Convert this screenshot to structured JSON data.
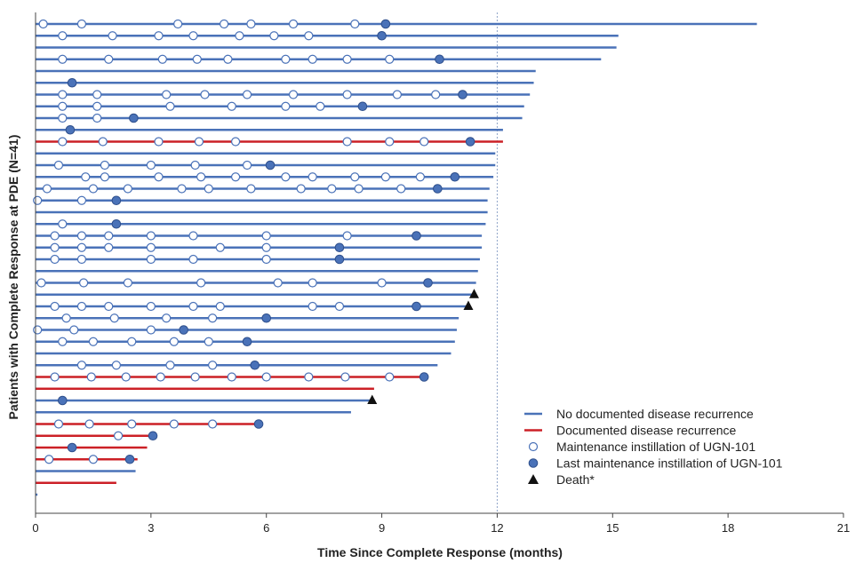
{
  "chart_data": {
    "type": "swimmer",
    "xlabel": "Time Since Complete Response (months)",
    "ylabel": "Patients with Complete Response at PDE (N=41)",
    "x_ticks": [
      0,
      3,
      6,
      9,
      12,
      15,
      18,
      21
    ],
    "xlim": [
      0,
      21
    ],
    "reference_line_x": 12,
    "grid": false,
    "legend_position": "bottom-right",
    "colors": {
      "no_recurrence": "#4a72b8",
      "recurrence": "#cc2027",
      "marker": "#4a72b8",
      "death": "#111111"
    },
    "legend": [
      {
        "kind": "no_recurrence",
        "label": "No documented disease recurrence"
      },
      {
        "kind": "recurrence",
        "label": "Documented disease recurrence"
      },
      {
        "kind": "maintenance",
        "label": "Maintenance instillation of UGN-101"
      },
      {
        "kind": "last",
        "label": "Last maintenance instillation of UGN-101"
      },
      {
        "kind": "death",
        "label": "Death*"
      }
    ],
    "patients": [
      {
        "end": 18.75,
        "recurrence": false,
        "open": [
          0.2,
          1.2,
          3.7,
          4.9,
          5.6,
          6.7,
          8.3
        ],
        "last": 9.1
      },
      {
        "end": 15.15,
        "recurrence": false,
        "open": [
          0.7,
          2.0,
          3.2,
          4.1,
          5.3,
          6.2,
          7.1
        ],
        "last": 9.0
      },
      {
        "end": 15.1,
        "recurrence": false,
        "open": [],
        "last": null
      },
      {
        "end": 14.7,
        "recurrence": false,
        "open": [
          0.7,
          1.9,
          3.3,
          4.2,
          5.0,
          6.5,
          7.2,
          8.1,
          9.2
        ],
        "last": 10.5
      },
      {
        "end": 13.0,
        "recurrence": false,
        "open": [],
        "last": null
      },
      {
        "end": 12.95,
        "recurrence": false,
        "open": [],
        "last": 0.95
      },
      {
        "end": 12.85,
        "recurrence": false,
        "open": [
          0.7,
          1.6,
          3.4,
          4.4,
          5.5,
          6.7,
          8.1,
          9.4,
          10.4
        ],
        "last": 11.1
      },
      {
        "end": 12.7,
        "recurrence": false,
        "open": [
          0.7,
          1.6,
          3.5,
          5.1,
          6.5,
          7.4
        ],
        "last": 8.5
      },
      {
        "end": 12.65,
        "recurrence": false,
        "open": [
          0.7,
          1.6
        ],
        "last": 2.55
      },
      {
        "end": 12.15,
        "recurrence": false,
        "open": [],
        "last": 0.9
      },
      {
        "end": 12.15,
        "recurrence": true,
        "open": [
          0.7,
          1.75,
          3.2,
          4.25,
          5.2,
          8.1,
          9.2,
          10.1
        ],
        "last": 11.3
      },
      {
        "end": 11.95,
        "recurrence": false,
        "open": [],
        "last": null
      },
      {
        "end": 11.95,
        "recurrence": false,
        "open": [
          0.6,
          1.8,
          3.0,
          4.15,
          5.5
        ],
        "last": 6.1
      },
      {
        "end": 11.9,
        "recurrence": false,
        "open": [
          1.3,
          1.8,
          3.2,
          4.3,
          5.2,
          6.5,
          7.2,
          8.3,
          9.1,
          10.0
        ],
        "last": 10.9
      },
      {
        "end": 11.8,
        "recurrence": false,
        "open": [
          0.3,
          1.5,
          2.4,
          3.8,
          4.5,
          5.6,
          6.9,
          7.7,
          8.4,
          9.5
        ],
        "last": 10.45
      },
      {
        "end": 11.75,
        "recurrence": false,
        "open": [
          0.05,
          1.2
        ],
        "last": 2.1
      },
      {
        "end": 11.75,
        "recurrence": false,
        "open": [],
        "last": null
      },
      {
        "end": 11.7,
        "recurrence": false,
        "open": [
          0.7
        ],
        "last": 2.1
      },
      {
        "end": 11.6,
        "recurrence": false,
        "open": [
          0.5,
          1.2,
          1.9,
          3.0,
          4.1,
          6.0,
          8.1
        ],
        "last": 9.9
      },
      {
        "end": 11.6,
        "recurrence": false,
        "open": [
          0.5,
          1.2,
          1.9,
          3.0,
          4.8,
          6.0
        ],
        "last": 7.9
      },
      {
        "end": 11.55,
        "recurrence": false,
        "open": [
          0.5,
          1.2,
          3.0,
          4.1,
          6.0
        ],
        "last": 7.9
      },
      {
        "end": 11.5,
        "recurrence": false,
        "open": [],
        "last": null
      },
      {
        "end": 11.45,
        "recurrence": false,
        "open": [
          0.15,
          1.25,
          2.4,
          4.3,
          6.3,
          7.2,
          9.0
        ],
        "last": 10.2
      },
      {
        "end": 11.4,
        "recurrence": false,
        "open": [],
        "last": null,
        "death": 11.4
      },
      {
        "end": 11.2,
        "recurrence": false,
        "open": [
          0.5,
          1.2,
          1.9,
          3.0,
          4.1,
          4.8,
          7.2,
          7.9
        ],
        "last": 9.9,
        "death": 11.25
      },
      {
        "end": 11.0,
        "recurrence": false,
        "open": [
          0.8,
          2.05,
          3.4,
          4.6
        ],
        "last": 6.0
      },
      {
        "end": 10.95,
        "recurrence": false,
        "open": [
          0.05,
          1.0,
          3.0
        ],
        "last": 3.85
      },
      {
        "end": 10.9,
        "recurrence": false,
        "open": [
          0.7,
          1.5,
          2.5,
          3.6,
          4.5
        ],
        "last": 5.5
      },
      {
        "end": 10.8,
        "recurrence": false,
        "open": [],
        "last": null
      },
      {
        "end": 10.45,
        "recurrence": false,
        "open": [
          1.2,
          2.1,
          3.5,
          4.6
        ],
        "last": 5.7
      },
      {
        "end": 10.1,
        "recurrence": true,
        "open": [
          0.5,
          1.45,
          2.35,
          3.25,
          4.15,
          5.1,
          6.0,
          7.1,
          8.05,
          9.2
        ],
        "last": 10.1
      },
      {
        "end": 8.8,
        "recurrence": true,
        "open": [],
        "last": null
      },
      {
        "end": 8.7,
        "recurrence": false,
        "open": [],
        "last": 0.7,
        "death": 8.75
      },
      {
        "end": 8.2,
        "recurrence": false,
        "open": [],
        "last": null
      },
      {
        "end": 5.8,
        "recurrence": true,
        "open": [
          0.6,
          1.4,
          2.5,
          3.6,
          4.6
        ],
        "last": 5.8
      },
      {
        "end": 3.1,
        "recurrence": true,
        "open": [
          2.15
        ],
        "last": 3.05
      },
      {
        "end": 2.9,
        "recurrence": true,
        "open": [],
        "last": 0.95
      },
      {
        "end": 2.65,
        "recurrence": true,
        "open": [
          0.35,
          1.5
        ],
        "last": 2.45
      },
      {
        "end": 2.6,
        "recurrence": false,
        "open": [],
        "last": null
      },
      {
        "end": 2.1,
        "recurrence": true,
        "open": [],
        "last": null
      },
      {
        "end": 0.05,
        "recurrence": false,
        "open": [],
        "last": null
      }
    ]
  }
}
